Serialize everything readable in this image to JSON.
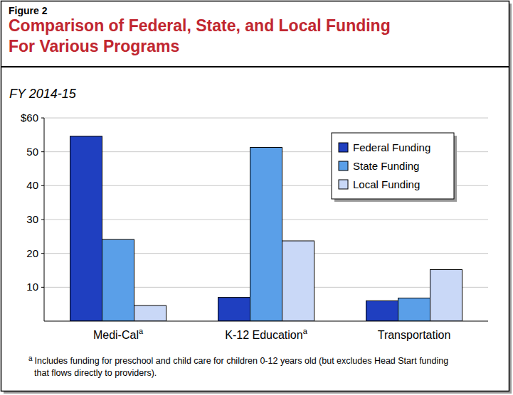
{
  "chart_data": {
    "type": "bar",
    "figure_label": "Figure 2",
    "title": [
      "Comparison of Federal, State, and Local Funding",
      "For Various Programs"
    ],
    "subtitle": "FY 2014-15",
    "categories": [
      "Medi-Cal",
      "K-12 Education",
      "Transportation"
    ],
    "category_footnote_markers": [
      "a",
      "a",
      null
    ],
    "series": [
      {
        "name": "Federal Funding",
        "color": "#1f3fc0",
        "values": [
          54.6,
          7.0,
          6.0
        ]
      },
      {
        "name": "State Funding",
        "color": "#5a9fe8",
        "values": [
          24.1,
          51.3,
          6.8
        ]
      },
      {
        "name": "Local Funding",
        "color": "#c9d8f7",
        "values": [
          4.6,
          23.7,
          15.2
        ]
      }
    ],
    "ylim": [
      0,
      60
    ],
    "yticks": [
      10,
      20,
      30,
      40,
      50,
      {
        "value": 60,
        "label": "$60"
      }
    ],
    "grid": true,
    "legend": "upper-right",
    "footnote": {
      "marker": "a",
      "lines": [
        "Includes funding for preschool and child care for children 0-12 years old (but excludes Head Start funding",
        "that flows directly to providers)."
      ]
    }
  }
}
